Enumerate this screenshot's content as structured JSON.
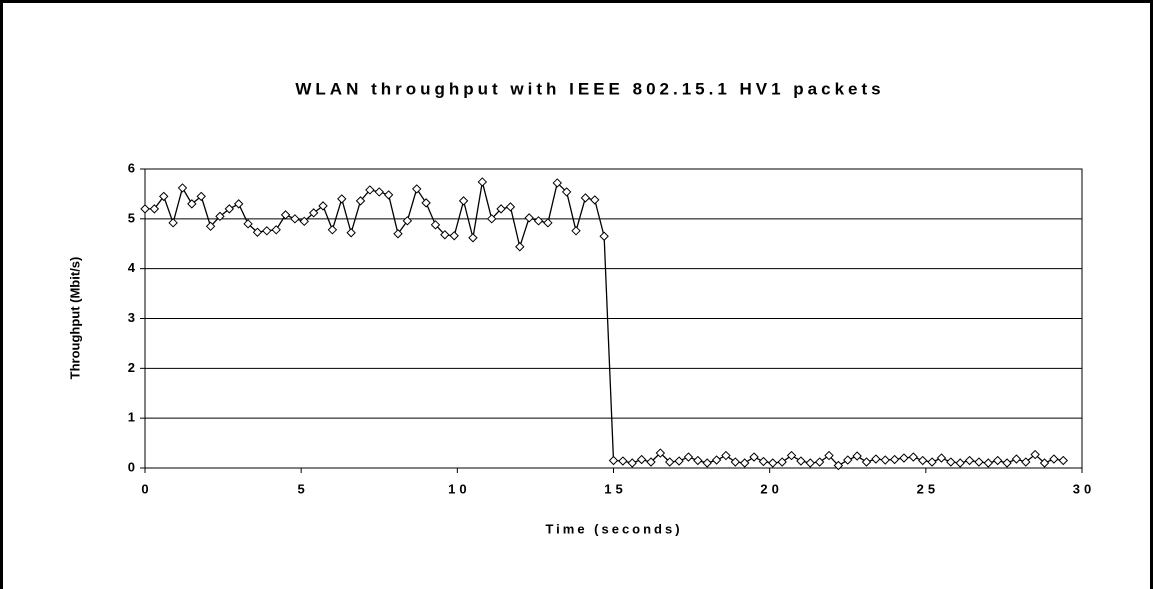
{
  "chart_data": {
    "type": "line",
    "title": "WLAN throughput with IEEE 802.15.1 HV1 packets",
    "x_label": "Time (seconds)",
    "y_label": "Throughput (Mbit/s)",
    "x": [
      0,
      0.3,
      0.6,
      0.9,
      1.2,
      1.5,
      1.8,
      2.1,
      2.4,
      2.7,
      3,
      3.3,
      3.6,
      3.9,
      4.2,
      4.5,
      4.8,
      5.1,
      5.4,
      5.7,
      6,
      6.3,
      6.6,
      6.9,
      7.2,
      7.5,
      7.8,
      8.1,
      8.4,
      8.7,
      9,
      9.3,
      9.6,
      9.9,
      10.2,
      10.5,
      10.8,
      11.1,
      11.4,
      11.7,
      12,
      12.3,
      12.6,
      12.9,
      13.2,
      13.5,
      13.8,
      14.1,
      14.4,
      14.7,
      15,
      15.3,
      15.6,
      15.9,
      16.2,
      16.5,
      16.8,
      17.1,
      17.4,
      17.7,
      18,
      18.3,
      18.6,
      18.9,
      19.2,
      19.5,
      19.8,
      20.1,
      20.4,
      20.7,
      21,
      21.3,
      21.6,
      21.9,
      22.2,
      22.5,
      22.8,
      23.1,
      23.4,
      23.7,
      24,
      24.3,
      24.6,
      24.9,
      25.2,
      25.5,
      25.8,
      26.1,
      26.4,
      26.7,
      27,
      27.3,
      27.6,
      27.9,
      28.2,
      28.5,
      28.8,
      29.1,
      29.4
    ],
    "series": [
      {
        "name": "Throughput",
        "color": "#000000",
        "values": [
          5.2,
          5.2,
          5.45,
          4.92,
          5.62,
          5.3,
          5.45,
          4.85,
          5.05,
          5.2,
          5.3,
          4.9,
          4.73,
          4.76,
          4.78,
          5.08,
          5.0,
          4.95,
          5.12,
          5.26,
          4.78,
          5.4,
          4.72,
          5.36,
          5.58,
          5.54,
          5.48,
          4.7,
          4.96,
          5.6,
          5.32,
          4.88,
          4.68,
          4.66,
          5.36,
          4.62,
          5.74,
          5.0,
          5.2,
          5.24,
          4.44,
          5.02,
          4.96,
          4.92,
          5.72,
          5.54,
          4.76,
          5.42,
          5.38,
          4.65,
          0.15,
          0.14,
          0.1,
          0.17,
          0.12,
          0.3,
          0.12,
          0.14,
          0.22,
          0.15,
          0.1,
          0.16,
          0.25,
          0.12,
          0.1,
          0.22,
          0.13,
          0.1,
          0.12,
          0.25,
          0.14,
          0.1,
          0.12,
          0.25,
          0.05,
          0.16,
          0.24,
          0.12,
          0.18,
          0.16,
          0.17,
          0.2,
          0.22,
          0.15,
          0.12,
          0.2,
          0.12,
          0.1,
          0.15,
          0.12,
          0.1,
          0.15,
          0.1,
          0.18,
          0.12,
          0.27,
          0.1,
          0.18,
          0.15
        ]
      }
    ],
    "xlim": [
      0,
      30
    ],
    "xticks": [
      0,
      5,
      10,
      15,
      20,
      25,
      30
    ],
    "ylim": [
      0,
      6
    ],
    "yticks": [
      0,
      1,
      2,
      3,
      4,
      5,
      6
    ],
    "grid": true
  }
}
